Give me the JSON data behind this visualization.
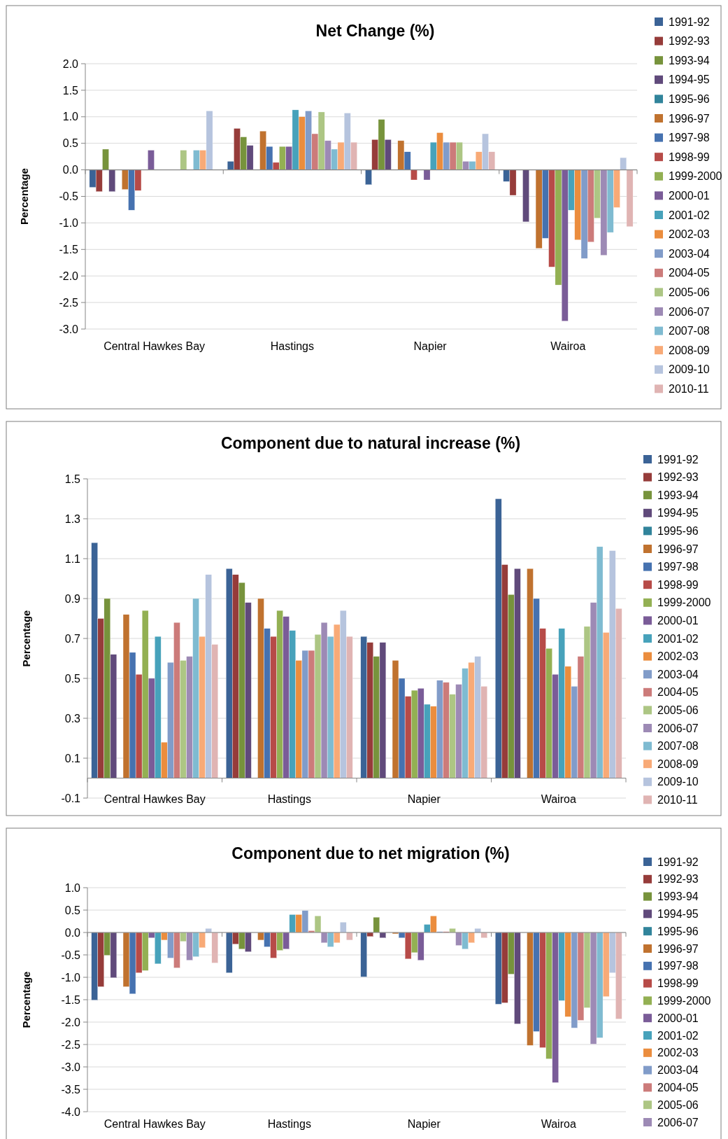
{
  "chart_data": [
    {
      "type": "bar",
      "title": "Net Change (%)",
      "ylabel": "Percentage",
      "categories": [
        "Central Hawkes Bay",
        "Hastings",
        "Napier",
        "Wairoa"
      ],
      "ylim": [
        -3,
        2
      ],
      "yticks": [
        {
          "value": -3,
          "label": "-3.0"
        },
        {
          "value": -2.5,
          "label": "-2.5"
        },
        {
          "value": -2,
          "label": "-2.0"
        },
        {
          "value": -1.5,
          "label": "-1.5"
        },
        {
          "value": -1,
          "label": "-1.0"
        },
        {
          "value": -0.5,
          "label": "-0.5"
        },
        {
          "value": 0,
          "label": "0.0"
        },
        {
          "value": 0.5,
          "label": "0.5"
        },
        {
          "value": 1,
          "label": "1.0"
        },
        {
          "value": 1.5,
          "label": "1.5"
        },
        {
          "value": 2,
          "label": "2.0"
        }
      ],
      "grid": "y",
      "legend": "right",
      "series": [
        {
          "name": "1991-92",
          "color": "#3b6396",
          "values": [
            -0.33,
            0.16,
            -0.28,
            -0.22
          ]
        },
        {
          "name": "1992-93",
          "color": "#963c3a",
          "values": [
            -0.41,
            0.78,
            0.57,
            -0.48
          ]
        },
        {
          "name": "1993-94",
          "color": "#77933c",
          "values": [
            0.39,
            0.62,
            0.95,
            null
          ]
        },
        {
          "name": "1994-95",
          "color": "#604a7b",
          "values": [
            -0.41,
            0.46,
            0.57,
            -0.98
          ]
        },
        {
          "name": "1995-96",
          "color": "#31849b",
          "values": [
            null,
            null,
            null,
            null
          ]
        },
        {
          "name": "1996-97",
          "color": "#c0722f",
          "values": [
            -0.37,
            0.73,
            0.55,
            -1.48
          ]
        },
        {
          "name": "1997-98",
          "color": "#4672b0",
          "values": [
            -0.76,
            0.44,
            0.34,
            -1.29
          ]
        },
        {
          "name": "1998-99",
          "color": "#b74b48",
          "values": [
            -0.39,
            0.14,
            -0.19,
            -1.83
          ]
        },
        {
          "name": "1999-2000",
          "color": "#93b053",
          "values": [
            null,
            0.44,
            null,
            -2.17
          ]
        },
        {
          "name": "2000-01",
          "color": "#7a5c98",
          "values": [
            0.37,
            0.44,
            -0.19,
            -2.85
          ]
        },
        {
          "name": "2001-02",
          "color": "#47a2bb",
          "values": [
            null,
            1.13,
            0.52,
            -0.76
          ]
        },
        {
          "name": "2002-03",
          "color": "#eb8d3e",
          "values": [
            null,
            1.0,
            0.7,
            -1.32
          ]
        },
        {
          "name": "2003-04",
          "color": "#819cc9",
          "values": [
            null,
            1.11,
            0.52,
            -1.67
          ]
        },
        {
          "name": "2004-05",
          "color": "#cc7b7a",
          "values": [
            null,
            0.68,
            0.52,
            -1.36
          ]
        },
        {
          "name": "2005-06",
          "color": "#adc684",
          "values": [
            0.37,
            1.09,
            0.52,
            -0.91
          ]
        },
        {
          "name": "2006-07",
          "color": "#9d8ab5",
          "values": [
            null,
            0.55,
            0.16,
            -1.61
          ]
        },
        {
          "name": "2007-08",
          "color": "#7fbbd1",
          "values": [
            0.37,
            0.39,
            0.16,
            -1.18
          ]
        },
        {
          "name": "2008-09",
          "color": "#f8aa77",
          "values": [
            0.37,
            0.52,
            0.34,
            -0.71
          ]
        },
        {
          "name": "2009-10",
          "color": "#b6c4de",
          "values": [
            1.11,
            1.07,
            0.68,
            0.23
          ]
        },
        {
          "name": "2010-11",
          "color": "#e0b4b3",
          "values": [
            null,
            0.52,
            0.34,
            -1.07
          ]
        }
      ]
    },
    {
      "type": "bar",
      "title": "Component due to natural increase (%)",
      "ylabel": "Percentage",
      "categories": [
        "Central Hawkes Bay",
        "Hastings",
        "Napier",
        "Wairoa"
      ],
      "ylim": [
        -0.1,
        1.5
      ],
      "yticks": [
        -0.1,
        0.1,
        0.3,
        0.5,
        0.7,
        0.9,
        1.1,
        1.3,
        1.5
      ],
      "grid": "y",
      "legend": "right",
      "series": [
        {
          "name": "1991-92",
          "color": "#3b6396",
          "values": [
            1.18,
            1.05,
            0.71,
            1.4
          ]
        },
        {
          "name": "1992-93",
          "color": "#963c3a",
          "values": [
            0.8,
            1.02,
            0.68,
            1.07
          ]
        },
        {
          "name": "1993-94",
          "color": "#77933c",
          "values": [
            0.9,
            0.98,
            0.61,
            0.92
          ]
        },
        {
          "name": "1994-95",
          "color": "#604a7b",
          "values": [
            0.62,
            0.88,
            0.68,
            1.05
          ]
        },
        {
          "name": "1995-96",
          "color": "#31849b",
          "values": [
            null,
            null,
            null,
            null
          ]
        },
        {
          "name": "1996-97",
          "color": "#c0722f",
          "values": [
            0.82,
            0.9,
            0.59,
            1.05
          ]
        },
        {
          "name": "1997-98",
          "color": "#4672b0",
          "values": [
            0.63,
            0.75,
            0.5,
            0.9
          ]
        },
        {
          "name": "1998-99",
          "color": "#b74b48",
          "values": [
            0.52,
            0.71,
            0.41,
            0.75
          ]
        },
        {
          "name": "1999-2000",
          "color": "#93b053",
          "values": [
            0.84,
            0.84,
            0.44,
            0.65
          ]
        },
        {
          "name": "2000-01",
          "color": "#7a5c98",
          "values": [
            0.5,
            0.81,
            0.45,
            0.52
          ]
        },
        {
          "name": "2001-02",
          "color": "#47a2bb",
          "values": [
            0.71,
            0.74,
            0.37,
            0.75
          ]
        },
        {
          "name": "2002-03",
          "color": "#eb8d3e",
          "values": [
            0.18,
            0.59,
            0.36,
            0.56
          ]
        },
        {
          "name": "2003-04",
          "color": "#819cc9",
          "values": [
            0.58,
            0.64,
            0.49,
            0.46
          ]
        },
        {
          "name": "2004-05",
          "color": "#cc7b7a",
          "values": [
            0.78,
            0.64,
            0.48,
            0.61
          ]
        },
        {
          "name": "2005-06",
          "color": "#adc684",
          "values": [
            0.59,
            0.72,
            0.42,
            0.76
          ]
        },
        {
          "name": "2006-07",
          "color": "#9d8ab5",
          "values": [
            0.61,
            0.78,
            0.47,
            0.88
          ]
        },
        {
          "name": "2007-08",
          "color": "#7fbbd1",
          "values": [
            0.9,
            0.71,
            0.55,
            1.16
          ]
        },
        {
          "name": "2008-09",
          "color": "#f8aa77",
          "values": [
            0.71,
            0.77,
            0.58,
            0.73
          ]
        },
        {
          "name": "2009-10",
          "color": "#b6c4de",
          "values": [
            1.02,
            0.84,
            0.61,
            1.14
          ]
        },
        {
          "name": "2010-11",
          "color": "#e0b4b3",
          "values": [
            0.67,
            0.71,
            0.46,
            0.85
          ]
        }
      ]
    },
    {
      "type": "bar",
      "title": "Component due to net migration (%)",
      "ylabel": "Percentage",
      "categories": [
        "Central Hawkes Bay",
        "Hastings",
        "Napier",
        "Wairoa"
      ],
      "ylim": [
        -4,
        1
      ],
      "yticks": [
        {
          "value": -4,
          "label": "-4.0"
        },
        {
          "value": -3.5,
          "label": "-3.5"
        },
        {
          "value": -3,
          "label": "-3.0"
        },
        {
          "value": -2.5,
          "label": "-2.5"
        },
        {
          "value": -2,
          "label": "-2.0"
        },
        {
          "value": -1.5,
          "label": "-1.5"
        },
        {
          "value": -1,
          "label": "-1.0"
        },
        {
          "value": -0.5,
          "label": "-0.5"
        },
        {
          "value": 0,
          "label": "0.0"
        },
        {
          "value": 0.5,
          "label": "0.5"
        },
        {
          "value": 1,
          "label": "1.0"
        }
      ],
      "grid": "y",
      "legend": "right",
      "series": [
        {
          "name": "1991-92",
          "color": "#3b6396",
          "values": [
            -1.51,
            -0.9,
            -0.99,
            -1.6
          ]
        },
        {
          "name": "1992-93",
          "color": "#963c3a",
          "values": [
            -1.21,
            -0.26,
            -0.09,
            -1.57
          ]
        },
        {
          "name": "1993-94",
          "color": "#77933c",
          "values": [
            -0.51,
            -0.37,
            0.34,
            -0.93
          ]
        },
        {
          "name": "1994-95",
          "color": "#604a7b",
          "values": [
            -1.01,
            -0.43,
            -0.12,
            -2.04
          ]
        },
        {
          "name": "1995-96",
          "color": "#31849b",
          "values": [
            null,
            null,
            null,
            null
          ]
        },
        {
          "name": "1996-97",
          "color": "#c0722f",
          "values": [
            -1.21,
            -0.17,
            -0.03,
            -2.52
          ]
        },
        {
          "name": "1997-98",
          "color": "#4672b0",
          "values": [
            -1.37,
            -0.32,
            -0.12,
            -2.21
          ]
        },
        {
          "name": "1998-99",
          "color": "#b74b48",
          "values": [
            -0.9,
            -0.57,
            -0.59,
            -2.57
          ]
        },
        {
          "name": "1999-2000",
          "color": "#93b053",
          "values": [
            -0.85,
            -0.4,
            -0.45,
            -2.82
          ]
        },
        {
          "name": "2000-01",
          "color": "#7a5c98",
          "values": [
            -0.12,
            -0.37,
            -0.62,
            -3.35
          ]
        },
        {
          "name": "2001-02",
          "color": "#47a2bb",
          "values": [
            -0.7,
            0.4,
            0.18,
            -1.52
          ]
        },
        {
          "name": "2002-03",
          "color": "#eb8d3e",
          "values": [
            -0.17,
            0.4,
            0.37,
            -1.88
          ]
        },
        {
          "name": "2003-04",
          "color": "#819cc9",
          "values": [
            -0.57,
            0.49,
            0.02,
            -2.13
          ]
        },
        {
          "name": "2004-05",
          "color": "#cc7b7a",
          "values": [
            -0.79,
            0.04,
            0.02,
            -1.96
          ]
        },
        {
          "name": "2005-06",
          "color": "#adc684",
          "values": [
            -0.2,
            0.37,
            0.09,
            -1.68
          ]
        },
        {
          "name": "2006-07",
          "color": "#9d8ab5",
          "values": [
            -0.62,
            -0.23,
            -0.29,
            -2.49
          ]
        },
        {
          "color": "#7fbbd1",
          "values": [
            -0.54,
            -0.32,
            -0.37,
            -2.35
          ]
        },
        {
          "color": "#f8aa77",
          "values": [
            -0.34,
            -0.23,
            -0.23,
            -1.43
          ]
        },
        {
          "color": "#b6c4de",
          "values": [
            0.09,
            0.23,
            0.09,
            -0.9
          ]
        },
        {
          "color": "#e0b4b3",
          "values": [
            -0.68,
            -0.17,
            -0.12,
            -1.93
          ]
        }
      ]
    }
  ]
}
